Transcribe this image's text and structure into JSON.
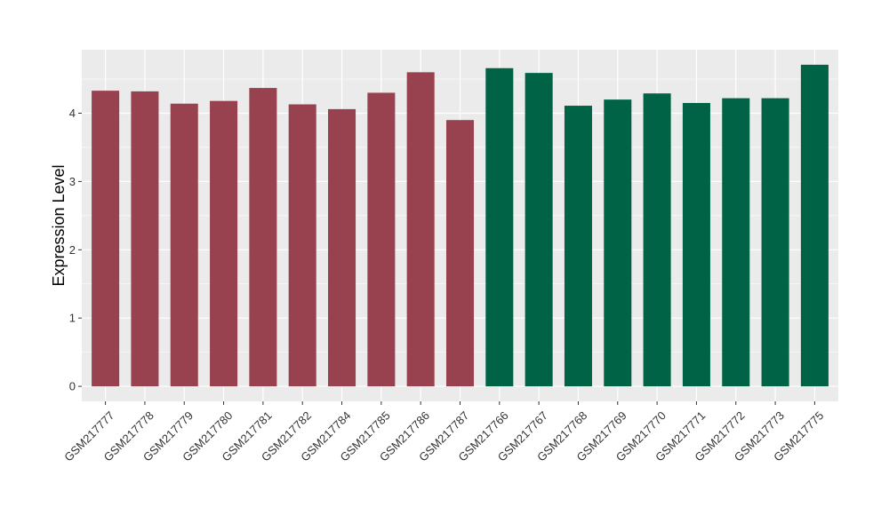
{
  "chart_data": {
    "type": "bar",
    "title": "",
    "xlabel": "",
    "ylabel": "Expression Level",
    "ylim": [
      -0.22,
      4.93
    ],
    "yticks": [
      0,
      1,
      2,
      3,
      4
    ],
    "grid": true,
    "legend": "none",
    "panel_color": "#ebebeb",
    "grid_color": "#ffffff",
    "categories": [
      "GSM217777",
      "GSM217778",
      "GSM217779",
      "GSM217780",
      "GSM217781",
      "GSM217782",
      "GSM217784",
      "GSM217785",
      "GSM217786",
      "GSM217787",
      "GSM217766",
      "GSM217767",
      "GSM217768",
      "GSM217769",
      "GSM217770",
      "GSM217771",
      "GSM217772",
      "GSM217773",
      "GSM217775"
    ],
    "values": [
      4.33,
      4.32,
      4.14,
      4.18,
      4.37,
      4.13,
      4.06,
      4.3,
      4.6,
      3.9,
      4.66,
      4.59,
      4.11,
      4.2,
      4.29,
      4.15,
      4.22,
      4.22,
      4.71
    ],
    "bar_colors": [
      "#99424f",
      "#99424f",
      "#99424f",
      "#99424f",
      "#99424f",
      "#99424f",
      "#99424f",
      "#99424f",
      "#99424f",
      "#99424f",
      "#006345",
      "#006345",
      "#006345",
      "#006345",
      "#006345",
      "#006345",
      "#006345",
      "#006345",
      "#006345"
    ]
  }
}
